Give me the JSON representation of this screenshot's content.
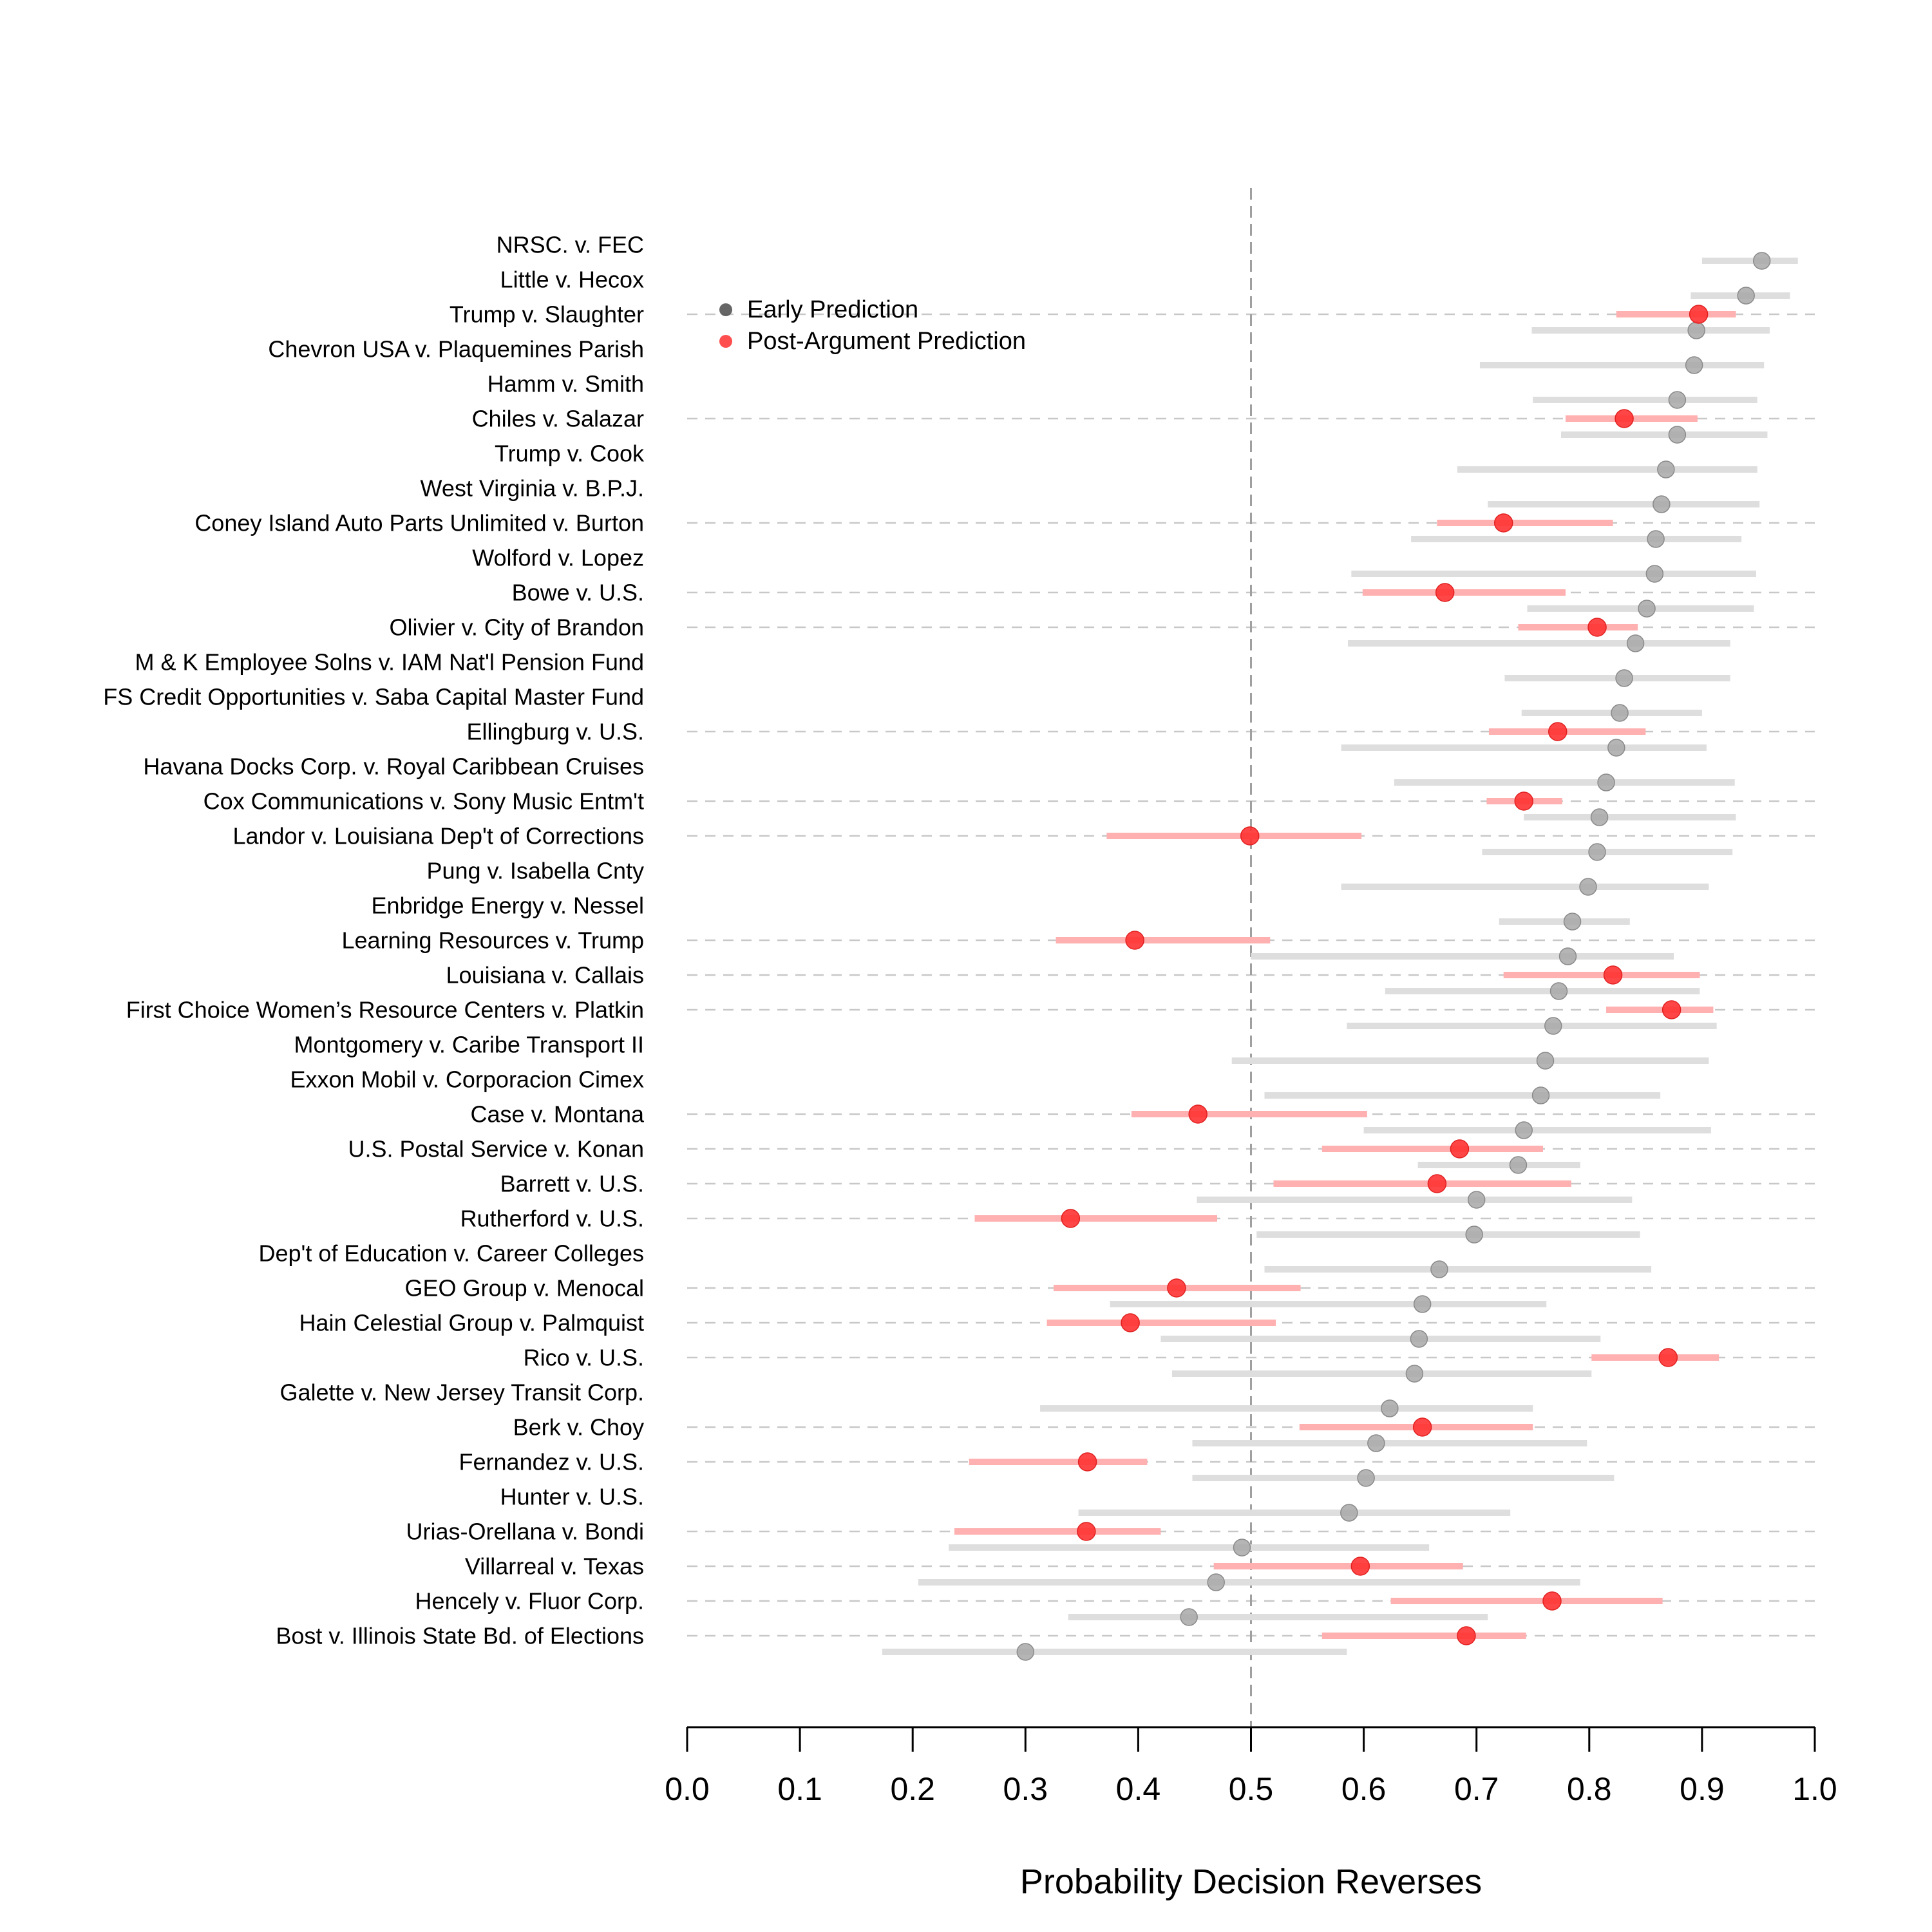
{
  "chart_data": {
    "type": "scatter",
    "xlabel": "Probability Decision Reverses",
    "xlim": [
      0.0,
      1.0
    ],
    "xticks": [
      "0.0",
      "0.1",
      "0.2",
      "0.3",
      "0.4",
      "0.5",
      "0.6",
      "0.7",
      "0.8",
      "0.9",
      "1.0"
    ],
    "reference_line": 0.5,
    "legend": {
      "position": "top-left",
      "entries": [
        {
          "label": "Early Prediction",
          "color": "#555555"
        },
        {
          "label": "Post-Argument Prediction",
          "color": "#ff3b3b"
        }
      ]
    },
    "colors": {
      "early_point": "#a8a8a8",
      "early_interval": "#dedede",
      "post_point": "#ff3232",
      "post_interval": "#ffb0b0",
      "guide": "#c8c8c8",
      "ref_line": "#a0a0a0"
    },
    "cases": [
      {
        "name": "NRSC. v. FEC",
        "early": 0.953,
        "early_lo": 0.9,
        "early_hi": 0.985
      },
      {
        "name": "Little v. Hecox",
        "early": 0.939,
        "early_lo": 0.89,
        "early_hi": 0.978
      },
      {
        "name": "Trump v. Slaughter",
        "early": 0.895,
        "early_lo": 0.749,
        "early_hi": 0.96,
        "post": 0.897,
        "post_lo": 0.824,
        "post_hi": 0.93
      },
      {
        "name": "Chevron USA v. Plaquemines Parish",
        "early": 0.893,
        "early_lo": 0.703,
        "early_hi": 0.955
      },
      {
        "name": "Hamm v. Smith",
        "early": 0.878,
        "early_lo": 0.75,
        "early_hi": 0.949
      },
      {
        "name": "Chiles v. Salazar",
        "early": 0.878,
        "early_lo": 0.775,
        "early_hi": 0.958,
        "post": 0.831,
        "post_lo": 0.779,
        "post_hi": 0.896
      },
      {
        "name": "Trump v. Cook",
        "early": 0.868,
        "early_lo": 0.683,
        "early_hi": 0.949
      },
      {
        "name": "West Virginia v. B.P.J.",
        "early": 0.864,
        "early_lo": 0.71,
        "early_hi": 0.951
      },
      {
        "name": "Coney Island Auto Parts Unlimited v. Burton",
        "early": 0.859,
        "early_lo": 0.642,
        "early_hi": 0.935,
        "post": 0.724,
        "post_lo": 0.665,
        "post_hi": 0.821
      },
      {
        "name": "Wolford v. Lopez",
        "early": 0.858,
        "early_lo": 0.589,
        "early_hi": 0.948
      },
      {
        "name": "Bowe v. U.S.",
        "early": 0.851,
        "early_lo": 0.745,
        "early_hi": 0.946,
        "post": 0.672,
        "post_lo": 0.599,
        "post_hi": 0.779
      },
      {
        "name": "Olivier v. City of Brandon",
        "early": 0.841,
        "early_lo": 0.586,
        "early_hi": 0.925,
        "post": 0.807,
        "post_lo": 0.737,
        "post_hi": 0.843
      },
      {
        "name": "M & K Employee Solns v. IAM Nat'l Pension Fund",
        "early": 0.831,
        "early_lo": 0.725,
        "early_hi": 0.925
      },
      {
        "name": "FS Credit Opportunities v. Saba Capital Master Fund",
        "early": 0.827,
        "early_lo": 0.74,
        "early_hi": 0.9
      },
      {
        "name": "Ellingburg v. U.S.",
        "early": 0.824,
        "early_lo": 0.58,
        "early_hi": 0.904,
        "post": 0.772,
        "post_lo": 0.711,
        "post_hi": 0.85
      },
      {
        "name": "Havana Docks Corp. v. Royal Caribbean Cruises",
        "early": 0.815,
        "early_lo": 0.627,
        "early_hi": 0.929
      },
      {
        "name": "Cox Communications v. Sony Music Entm't",
        "early": 0.809,
        "early_lo": 0.742,
        "early_hi": 0.93,
        "post": 0.742,
        "post_lo": 0.709,
        "post_hi": 0.776
      },
      {
        "name": "Landor v. Louisiana Dep't of Corrections",
        "early": 0.807,
        "early_lo": 0.705,
        "early_hi": 0.927,
        "post": 0.499,
        "post_lo": 0.372,
        "post_hi": 0.598
      },
      {
        "name": "Pung v. Isabella Cnty",
        "early": 0.799,
        "early_lo": 0.58,
        "early_hi": 0.906
      },
      {
        "name": "Enbridge Energy v. Nessel",
        "early": 0.785,
        "early_lo": 0.72,
        "early_hi": 0.836
      },
      {
        "name": "Learning Resources v. Trump",
        "early": 0.781,
        "early_lo": 0.5,
        "early_hi": 0.875,
        "post": 0.397,
        "post_lo": 0.327,
        "post_hi": 0.517
      },
      {
        "name": "Louisiana v. Callais",
        "early": 0.773,
        "early_lo": 0.619,
        "early_hi": 0.898,
        "post": 0.821,
        "post_lo": 0.724,
        "post_hi": 0.898
      },
      {
        "name": "First Choice Women’s Resource Centers v. Platkin",
        "early": 0.768,
        "early_lo": 0.585,
        "early_hi": 0.913,
        "post": 0.873,
        "post_lo": 0.815,
        "post_hi": 0.91
      },
      {
        "name": "Montgomery v. Caribe Transport II",
        "early": 0.761,
        "early_lo": 0.483,
        "early_hi": 0.906
      },
      {
        "name": "Exxon Mobil v. Corporacion Cimex",
        "early": 0.757,
        "early_lo": 0.512,
        "early_hi": 0.863
      },
      {
        "name": "Case v. Montana",
        "early": 0.742,
        "early_lo": 0.6,
        "early_hi": 0.908,
        "post": 0.453,
        "post_lo": 0.394,
        "post_hi": 0.603
      },
      {
        "name": "U.S. Postal Service v. Konan",
        "early": 0.737,
        "early_lo": 0.648,
        "early_hi": 0.792,
        "post": 0.685,
        "post_lo": 0.563,
        "post_hi": 0.759
      },
      {
        "name": "Barrett v. U.S.",
        "early": 0.7,
        "early_lo": 0.452,
        "early_hi": 0.838,
        "post": 0.665,
        "post_lo": 0.52,
        "post_hi": 0.784
      },
      {
        "name": "Rutherford v. U.S.",
        "early": 0.698,
        "early_lo": 0.505,
        "early_hi": 0.845,
        "post": 0.34,
        "post_lo": 0.255,
        "post_hi": 0.47
      },
      {
        "name": "Dep't of Education v. Career Colleges",
        "early": 0.667,
        "early_lo": 0.512,
        "early_hi": 0.855
      },
      {
        "name": "GEO Group v. Menocal",
        "early": 0.652,
        "early_lo": 0.375,
        "early_hi": 0.762,
        "post": 0.434,
        "post_lo": 0.325,
        "post_hi": 0.544
      },
      {
        "name": "Hain Celestial Group v. Palmquist",
        "early": 0.649,
        "early_lo": 0.42,
        "early_hi": 0.81,
        "post": 0.393,
        "post_lo": 0.319,
        "post_hi": 0.522
      },
      {
        "name": "Rico v. U.S.",
        "early": 0.645,
        "early_lo": 0.43,
        "early_hi": 0.802,
        "post": 0.87,
        "post_lo": 0.802,
        "post_hi": 0.915
      },
      {
        "name": "Galette v. New Jersey Transit Corp.",
        "early": 0.623,
        "early_lo": 0.313,
        "early_hi": 0.75
      },
      {
        "name": "Berk v. Choy",
        "early": 0.611,
        "early_lo": 0.448,
        "early_hi": 0.798,
        "post": 0.652,
        "post_lo": 0.543,
        "post_hi": 0.75
      },
      {
        "name": "Fernandez v. U.S.",
        "early": 0.602,
        "early_lo": 0.448,
        "early_hi": 0.822,
        "post": 0.355,
        "post_lo": 0.25,
        "post_hi": 0.408
      },
      {
        "name": "Hunter v. U.S.",
        "early": 0.587,
        "early_lo": 0.347,
        "early_hi": 0.73
      },
      {
        "name": "Urias-Orellana v. Bondi",
        "early": 0.492,
        "early_lo": 0.232,
        "early_hi": 0.658,
        "post": 0.354,
        "post_lo": 0.237,
        "post_hi": 0.42
      },
      {
        "name": "Villarreal v. Texas",
        "early": 0.469,
        "early_lo": 0.205,
        "early_hi": 0.792,
        "post": 0.597,
        "post_lo": 0.467,
        "post_hi": 0.688
      },
      {
        "name": "Hencely v. Fluor Corp.",
        "early": 0.445,
        "early_lo": 0.338,
        "early_hi": 0.71,
        "post": 0.767,
        "post_lo": 0.624,
        "post_hi": 0.865
      },
      {
        "name": "Bost v. Illinois State Bd. of Elections",
        "early": 0.3,
        "early_lo": 0.173,
        "early_hi": 0.585,
        "post": 0.691,
        "post_lo": 0.563,
        "post_hi": 0.744
      }
    ]
  }
}
